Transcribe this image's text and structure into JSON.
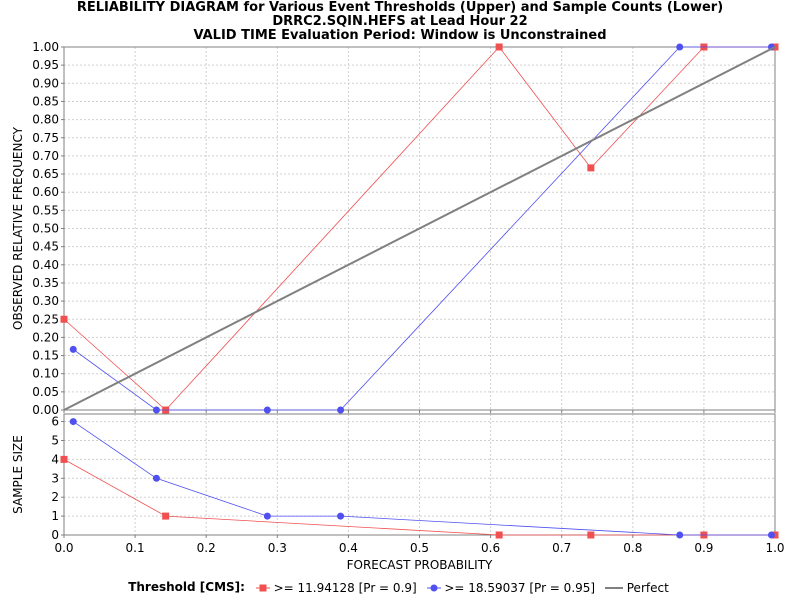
{
  "title_lines": [
    "RELIABILITY DIAGRAM for Various Event Thresholds (Upper) and Sample Counts (Lower)",
    "DRRC2.SQIN.HEFS at Lead Hour 22",
    "VALID TIME Evaluation Period: Window is Unconstrained"
  ],
  "legend": {
    "title": "Threshold [CMS]:",
    "items": [
      ">= 11.94128 [Pr = 0.9]",
      ">= 18.59037 [Pr = 0.95]",
      "Perfect"
    ]
  },
  "colors": {
    "series1": "#f05050",
    "series2": "#5050f0",
    "perfect": "#808080",
    "grid": "#d0d0d0"
  },
  "chart_data": [
    {
      "type": "line",
      "title": "RELIABILITY DIAGRAM for Various Event Thresholds (Upper) and Sample Counts (Lower)",
      "xlabel": "FORECAST PROBABILITY",
      "ylabel": "OBSERVED RELATIVE FREQUENCY",
      "xlim": [
        0,
        1
      ],
      "ylim": [
        0,
        1
      ],
      "x_ticks": [
        "0.0",
        "0.1",
        "0.2",
        "0.3",
        "0.4",
        "0.5",
        "0.6",
        "0.7",
        "0.8",
        "0.9",
        "1.0"
      ],
      "y_ticks": [
        "0.00",
        "0.05",
        "0.10",
        "0.15",
        "0.20",
        "0.25",
        "0.30",
        "0.35",
        "0.40",
        "0.45",
        "0.50",
        "0.55",
        "0.60",
        "0.65",
        "0.70",
        "0.75",
        "0.80",
        "0.85",
        "0.90",
        "0.95",
        "1.00"
      ],
      "grid": true,
      "series": [
        {
          "name": ">= 11.94128 [Pr = 0.9]",
          "marker": "square",
          "x": [
            0.0,
            0.143,
            0.612,
            0.741,
            0.9,
            1.0
          ],
          "y": [
            0.25,
            0.0,
            1.0,
            0.667,
            1.0,
            1.0
          ]
        },
        {
          "name": ">= 18.59037 [Pr = 0.95]",
          "marker": "circle",
          "x": [
            0.013,
            0.13,
            0.286,
            0.389,
            0.866,
            0.995
          ],
          "y": [
            0.167,
            0.0,
            0.0,
            0.0,
            1.0,
            1.0
          ]
        },
        {
          "name": "Perfect",
          "marker": "none",
          "x": [
            0,
            1
          ],
          "y": [
            0,
            1
          ]
        }
      ]
    },
    {
      "type": "line",
      "xlabel": "FORECAST PROBABILITY",
      "ylabel": "SAMPLE SIZE",
      "xlim": [
        0,
        1
      ],
      "ylim": [
        0,
        6.4
      ],
      "x_ticks": [
        "0.0",
        "0.1",
        "0.2",
        "0.3",
        "0.4",
        "0.5",
        "0.6",
        "0.7",
        "0.8",
        "0.9",
        "1.0"
      ],
      "y_ticks": [
        "0",
        "1",
        "2",
        "3",
        "4",
        "5",
        "6"
      ],
      "grid": true,
      "series": [
        {
          "name": ">= 11.94128 [Pr = 0.9]",
          "marker": "square",
          "x": [
            0.0,
            0.143,
            0.612,
            0.741,
            0.9,
            1.0
          ],
          "y": [
            4,
            1,
            0,
            0,
            0,
            0
          ]
        },
        {
          "name": ">= 18.59037 [Pr = 0.95]",
          "marker": "circle",
          "x": [
            0.013,
            0.13,
            0.286,
            0.389,
            0.866,
            0.995
          ],
          "y": [
            6,
            3,
            1,
            1,
            0,
            0
          ]
        }
      ]
    }
  ]
}
